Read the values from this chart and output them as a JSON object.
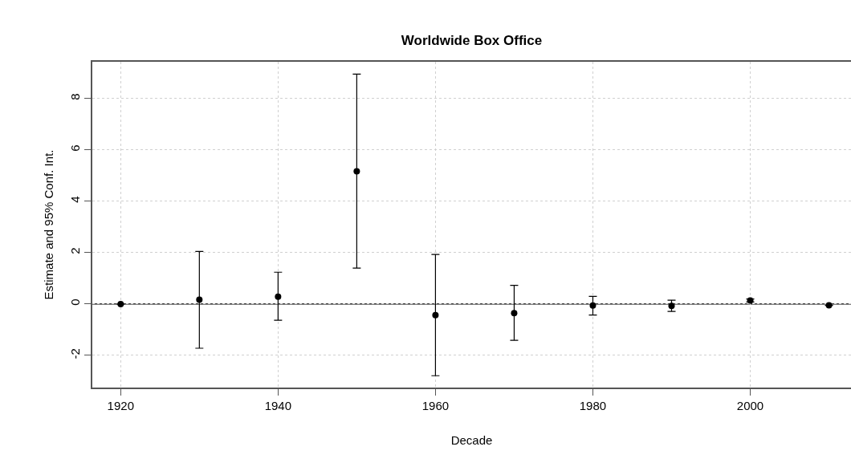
{
  "chart_data": {
    "type": "scatter",
    "title": "Worldwide Box Office",
    "xlabel": "Decade",
    "ylabel": "Estimate and 95% Conf. Int.",
    "x": [
      1920,
      1930,
      1940,
      1950,
      1960,
      1970,
      1980,
      1990,
      2000,
      2010
    ],
    "series": [
      {
        "color": "#000000",
        "values": [
          0,
          0.17,
          0.29,
          5.17,
          -0.43,
          -0.35,
          -0.06,
          -0.07,
          0.14,
          -0.05
        ],
        "errors": [
          null,
          [
            -1.72,
            2.05
          ],
          [
            -0.63,
            1.24
          ],
          [
            1.4,
            8.95
          ],
          [
            -2.79,
            1.93
          ],
          [
            -1.41,
            0.73
          ],
          [
            -0.43,
            0.3
          ],
          [
            -0.29,
            0.15
          ],
          [
            0.08,
            0.2
          ],
          null
        ]
      }
    ],
    "xlim": [
      1916.4,
      2012.8
    ],
    "ylim": [
      -3.25,
      9.43
    ],
    "xticks": [
      1920,
      1940,
      1960,
      1980,
      2000
    ],
    "yticks": [
      -2,
      0,
      2,
      4,
      6,
      8
    ],
    "ref_lines": [
      {
        "axis": "y",
        "value": 0,
        "color": "#000000",
        "line_style": "solid"
      }
    ],
    "grid": true,
    "marker": "circle"
  }
}
